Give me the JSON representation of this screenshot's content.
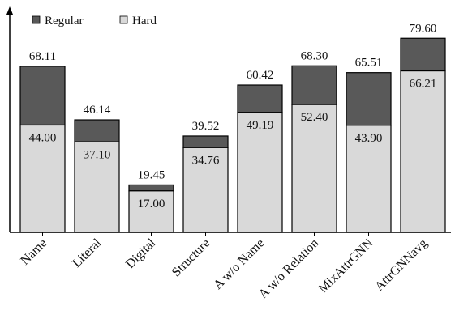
{
  "chart_data": {
    "type": "bar",
    "stacked": true,
    "categories": [
      "Name",
      "Literal",
      "Digital",
      "Structure",
      "A w/o Name",
      "A w/o Relation",
      "MixAttrGNN",
      "AttrGNNavg"
    ],
    "series": [
      {
        "name": "Hard",
        "color": "#d9d9d9",
        "values": [
          44.0,
          37.1,
          17.0,
          34.76,
          49.19,
          52.4,
          43.9,
          66.21
        ],
        "labels": [
          "44.00",
          "37.10",
          "17.00",
          "34.76",
          "49.19",
          "52.40",
          "43.90",
          "66.21"
        ]
      },
      {
        "name": "Regular",
        "color": "#595959",
        "totals": [
          68.11,
          46.14,
          19.45,
          39.52,
          60.42,
          68.3,
          65.51,
          79.6
        ],
        "total_labels": [
          "68.11",
          "46.14",
          "19.45",
          "39.52",
          "60.42",
          "68.30",
          "65.51",
          "79.60"
        ]
      }
    ],
    "legend": {
      "items": [
        {
          "name": "Regular",
          "color": "#595959"
        },
        {
          "name": "Hard",
          "color": "#d9d9d9"
        }
      ],
      "placement": "top-left"
    },
    "ylim": [
      0,
      90
    ],
    "grid": false,
    "x_tick_rotation": -45,
    "title": "",
    "xlabel": "",
    "ylabel": ""
  }
}
